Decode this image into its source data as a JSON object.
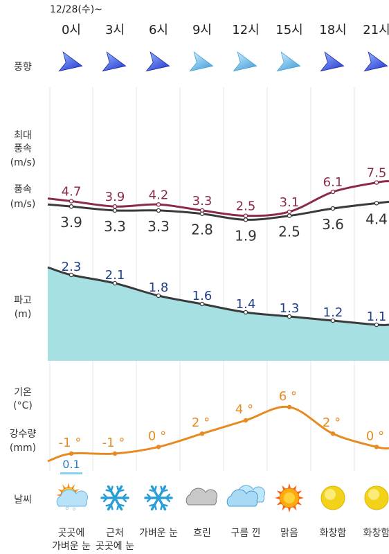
{
  "date_label": "12/28(수)~",
  "hours": [
    "0시",
    "3시",
    "6시",
    "9시",
    "12시",
    "15시",
    "18시",
    "21시"
  ],
  "row_labels": {
    "wind_dir": "풍향",
    "max_wind_1": "최대",
    "max_wind_2": "풍속",
    "max_wind_3": "(m/s)",
    "wind_1": "풍속",
    "wind_2": "(m/s)",
    "wave_1": "파고",
    "wave_2": "(m)",
    "temp_1": "기온",
    "temp_2": "(°C)",
    "precip_1": "강수량",
    "precip_2": "(mm)",
    "weather": "날씨"
  },
  "colors": {
    "max_wind": "#8b2a4a",
    "wind": "#3a3a3a",
    "wave_fill": "#a6e0e2",
    "wave_line": "#3a3a3a",
    "wave_text": "#1f3f8a",
    "temp": "#e88a22",
    "precip": "#2f7fc0",
    "grid": "#e4e4e4"
  },
  "chart_data": {
    "type": "line",
    "x": [
      "0시",
      "3시",
      "6시",
      "9시",
      "12시",
      "15시",
      "18시",
      "21시"
    ],
    "series": [
      {
        "name": "최대풍속",
        "values": [
          4.7,
          3.9,
          4.2,
          3.3,
          2.5,
          3.1,
          6.1,
          7.5
        ]
      },
      {
        "name": "풍속",
        "values": [
          3.9,
          3.3,
          3.3,
          2.8,
          1.9,
          2.5,
          3.6,
          4.4
        ]
      },
      {
        "name": "파고",
        "values": [
          2.3,
          2.1,
          1.8,
          1.6,
          1.4,
          1.3,
          1.2,
          1.1
        ]
      },
      {
        "name": "기온",
        "values": [
          -1,
          -1,
          0,
          2,
          4,
          6,
          2,
          0
        ]
      },
      {
        "name": "강수량",
        "values": [
          0.1,
          null,
          null,
          null,
          null,
          null,
          null,
          null
        ]
      }
    ],
    "value_labels": {
      "max_wind": [
        "4.7",
        "3.9",
        "4.2",
        "3.3",
        "2.5",
        "3.1",
        "6.1",
        "7.5"
      ],
      "wind": [
        "3.9",
        "3.3",
        "3.3",
        "2.8",
        "1.9",
        "2.5",
        "3.6",
        "4.4"
      ],
      "wave": [
        "2.3",
        "2.1",
        "1.8",
        "1.6",
        "1.4",
        "1.3",
        "1.2",
        "1.1"
      ],
      "temp": [
        "-1 °",
        "-1 °",
        "0 °",
        "2 °",
        "4 °",
        "6 °",
        "2 °",
        "0 °"
      ],
      "precip": [
        "0.1",
        "",
        "",
        "",
        "",
        "",
        "",
        ""
      ]
    }
  },
  "wind_directions": [
    {
      "icon": "wind-arrow-icon",
      "tone": "dark",
      "label": ""
    },
    {
      "icon": "wind-arrow-icon",
      "tone": "dark",
      "label": ""
    },
    {
      "icon": "wind-arrow-icon",
      "tone": "dark",
      "label": ""
    },
    {
      "icon": "wind-arrow-icon",
      "tone": "light",
      "label": ""
    },
    {
      "icon": "wind-arrow-icon",
      "tone": "light",
      "label": ""
    },
    {
      "icon": "wind-arrow-icon",
      "tone": "light",
      "label": ""
    },
    {
      "icon": "wind-arrow-icon",
      "tone": "dark",
      "label": ""
    },
    {
      "icon": "wind-arrow-icon",
      "tone": "dark",
      "label": ""
    }
  ],
  "weather": [
    {
      "icon": "sun-cloud-snow-icon",
      "desc1": "곳곳에",
      "desc2": "가벼운 눈"
    },
    {
      "icon": "snowflake-icon",
      "desc1": "근처",
      "desc2": "곳곳에 눈"
    },
    {
      "icon": "snowflake-icon",
      "desc1": "가벼운 눈",
      "desc2": ""
    },
    {
      "icon": "cloud-gray-icon",
      "desc1": "흐린",
      "desc2": ""
    },
    {
      "icon": "cloud-blue-icon",
      "desc1": "구름 낀",
      "desc2": ""
    },
    {
      "icon": "sun-icon",
      "desc1": "맑음",
      "desc2": ""
    },
    {
      "icon": "sun-yellow-icon",
      "desc1": "화창함",
      "desc2": ""
    },
    {
      "icon": "sun-yellow-icon",
      "desc1": "화창함",
      "desc2": ""
    }
  ]
}
